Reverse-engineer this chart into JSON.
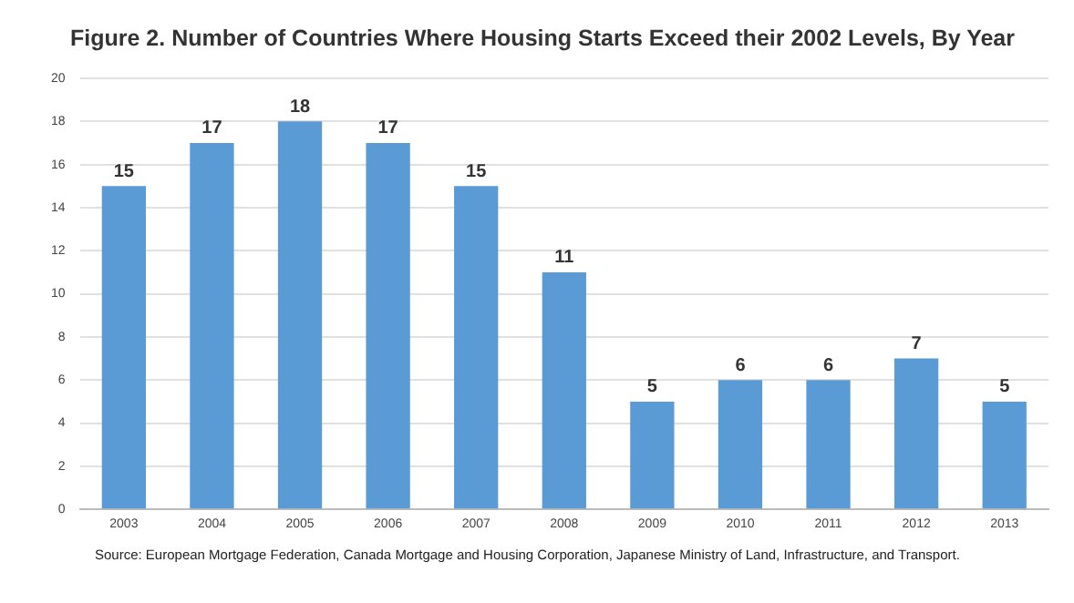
{
  "chart_data": {
    "type": "bar",
    "title": "Figure 2. Number of Countries Where Housing Starts Exceed their 2002 Levels, By Year",
    "categories": [
      "2003",
      "2004",
      "2005",
      "2006",
      "2007",
      "2008",
      "2009",
      "2010",
      "2011",
      "2012",
      "2013"
    ],
    "values": [
      15,
      17,
      18,
      17,
      15,
      11,
      5,
      6,
      6,
      7,
      5
    ],
    "color": "#5b9bd5",
    "ylim": [
      0,
      20
    ],
    "yticks": [
      0,
      2,
      4,
      6,
      8,
      10,
      12,
      14,
      16,
      18,
      20
    ],
    "grid": "y",
    "data_labels": true,
    "legend": false,
    "annotations": [
      "Source: European Mortgage Federation, Canada Mortgage and Housing Corporation, Japanese Ministry of Land, Infrastructure, and Transport."
    ]
  }
}
